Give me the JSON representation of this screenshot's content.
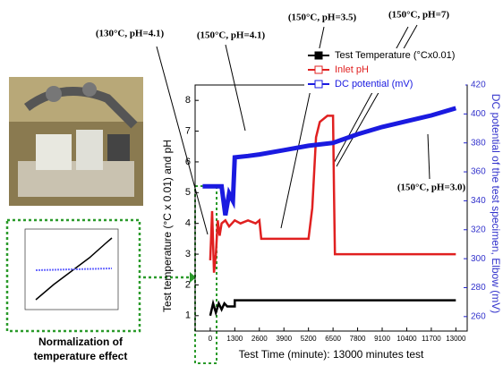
{
  "chart_data": {
    "type": "line",
    "xlabel": "Test Time (minute): 13000 minutes test",
    "ylabel": "Test temperature (°C x 0.01) and pH",
    "y2label": "DC potential of the test specimen, Elbow (mV)",
    "xlim": [
      -800,
      13600
    ],
    "xticks": [
      0,
      1300,
      2600,
      3900,
      5200,
      6500,
      7800,
      9100,
      10400,
      11700,
      13000
    ],
    "ylim": [
      0.5,
      8.5
    ],
    "yticks": [
      1,
      2,
      3,
      4,
      5,
      6,
      7,
      8
    ],
    "y2lim": [
      250,
      420
    ],
    "y2ticks": [
      260,
      280,
      300,
      320,
      340,
      360,
      380,
      400,
      420
    ],
    "legend": "upper right",
    "series": [
      {
        "name": "Test Temperature (°Cx0.01)",
        "color": "#000000",
        "x": [
          0,
          150,
          300,
          450,
          600,
          750,
          900,
          1050,
          1200,
          1300,
          1300,
          13000
        ],
        "values": [
          1.0,
          1.4,
          1.1,
          1.4,
          1.2,
          1.4,
          1.3,
          1.3,
          1.3,
          1.3,
          1.5,
          1.5
        ]
      },
      {
        "name": "Inlet pH",
        "color": "#e02020",
        "x": [
          0,
          100,
          200,
          300,
          400,
          500,
          600,
          800,
          1000,
          1300,
          1600,
          2000,
          2400,
          2600,
          2700,
          3500,
          4500,
          5200,
          5400,
          5600,
          5800,
          6200,
          6500,
          6550,
          6600,
          8000,
          10000,
          12000,
          13000
        ],
        "values": [
          2.8,
          4.4,
          2.4,
          3.0,
          4.1,
          3.6,
          4.0,
          4.1,
          3.9,
          4.1,
          4.0,
          4.1,
          4.0,
          4.1,
          3.5,
          3.5,
          3.5,
          3.5,
          4.5,
          6.8,
          7.3,
          7.5,
          7.5,
          5.0,
          3.0,
          3.0,
          3.0,
          3.0,
          3.0
        ]
      },
      {
        "name": "DC potential (mV)",
        "color": "#1a1ae0",
        "axis": "y2",
        "x": [
          -400,
          0,
          300,
          600,
          800,
          1000,
          1200,
          1300,
          2000,
          2600,
          3900,
          5200,
          6500,
          7800,
          9100,
          10400,
          11700,
          13000
        ],
        "values": [
          350,
          350,
          350,
          350,
          330,
          345,
          340,
          370,
          371,
          372,
          375,
          378,
          380,
          386,
          391,
          395,
          399,
          404
        ]
      }
    ],
    "annotations": [
      "(130°C, pH=4.1)",
      "(150°C, pH=4.1)",
      "(150°C, pH=3.5)",
      "(150°C, pH=7)",
      "(150°C, pH=3.0)"
    ]
  },
  "inset_caption": [
    "Normalization of",
    "temperature effect"
  ]
}
